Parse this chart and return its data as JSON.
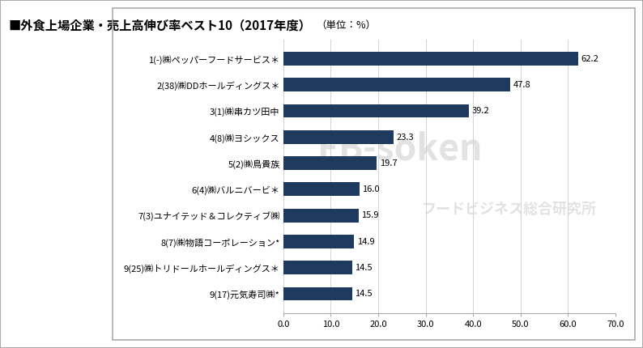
{
  "title_main": "■外食上場企業・売上高伸び率ベスト10（2017年度）",
  "title_sub": "（単位：%）",
  "categories": [
    "9(17)元気寿司㈱*",
    "9(25)㈱トリドールホールディングス＊",
    "8(7)㈱物語コーポレーション*",
    "7(3)ユナイテッド＆コレクティブ㈱",
    "6(4)㈱バルニバービ＊",
    "5(2)㈱鳥貴族",
    "4(8)㈱ヨシックス",
    "3(1)㈱串カツ田中",
    "2(38)㈱DDホールディングス＊",
    "1(-)㈱ペッパーフードサービス＊"
  ],
  "values": [
    14.5,
    14.5,
    14.9,
    15.9,
    16.0,
    19.7,
    23.3,
    39.2,
    47.8,
    62.2
  ],
  "bar_color": "#1e3a5f",
  "value_color": "#000000",
  "background_color": "#ffffff",
  "xlim": [
    0,
    70
  ],
  "xticks": [
    0.0,
    10.0,
    20.0,
    30.0,
    40.0,
    50.0,
    60.0,
    70.0
  ],
  "grid_color": "#cccccc",
  "border_color": "#aaaaaa",
  "watermark_fb": "FB-soken",
  "watermark_jp": "フードビジネス総合研究所",
  "title_fontsize": 11,
  "sub_fontsize": 9,
  "label_fontsize": 8,
  "value_fontsize": 8,
  "tick_fontsize": 8
}
